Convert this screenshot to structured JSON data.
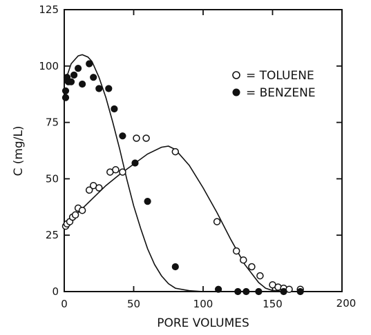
{
  "chart_data": {
    "type": "scatter",
    "xlabel": "PORE VOLUMES",
    "ylabel": "C (mg/L)",
    "xlim": [
      0,
      200
    ],
    "ylim": [
      0,
      125
    ],
    "x_ticks": [
      "0",
      "50",
      "100",
      "150",
      "200"
    ],
    "y_ticks": [
      "0",
      "25",
      "50",
      "75",
      "100",
      "125"
    ],
    "legend_position": "upper-right",
    "series": [
      {
        "name": "TOLUENE",
        "marker": "open-circle",
        "legend_label": "= TOLUENE",
        "points": [
          [
            1,
            29
          ],
          [
            2,
            30
          ],
          [
            4,
            31
          ],
          [
            6,
            33
          ],
          [
            8,
            34
          ],
          [
            10,
            37
          ],
          [
            13,
            36
          ],
          [
            18,
            45
          ],
          [
            21,
            47
          ],
          [
            25,
            46
          ],
          [
            33,
            53
          ],
          [
            37,
            54
          ],
          [
            42,
            53
          ],
          [
            52,
            68
          ],
          [
            59,
            68
          ],
          [
            80,
            62
          ],
          [
            110,
            31
          ],
          [
            124,
            18
          ],
          [
            129,
            14
          ],
          [
            135,
            11
          ],
          [
            141,
            7
          ],
          [
            150,
            3
          ],
          [
            154,
            2
          ],
          [
            158,
            1.5
          ],
          [
            162,
            1
          ],
          [
            170,
            1
          ]
        ]
      },
      {
        "name": "BENZENE",
        "marker": "filled-circle",
        "legend_label": "= BENZENE",
        "points": [
          [
            1,
            86
          ],
          [
            1,
            89
          ],
          [
            2,
            95
          ],
          [
            3,
            93
          ],
          [
            5,
            93
          ],
          [
            7,
            96
          ],
          [
            10,
            99
          ],
          [
            13,
            92
          ],
          [
            18,
            101
          ],
          [
            21,
            95
          ],
          [
            25,
            90
          ],
          [
            32,
            90
          ],
          [
            36,
            81
          ],
          [
            42,
            69
          ],
          [
            51,
            57
          ],
          [
            60,
            40
          ],
          [
            80,
            11
          ],
          [
            111,
            1
          ],
          [
            125,
            0
          ],
          [
            131,
            0
          ],
          [
            140,
            0
          ],
          [
            158,
            0
          ],
          [
            170,
            0
          ]
        ]
      }
    ],
    "fit_curves": [
      {
        "for": "TOLUENE",
        "points": [
          [
            0,
            29
          ],
          [
            10,
            35
          ],
          [
            20,
            41
          ],
          [
            30,
            47
          ],
          [
            40,
            52
          ],
          [
            50,
            56.5
          ],
          [
            60,
            61
          ],
          [
            70,
            64
          ],
          [
            75,
            64.5
          ],
          [
            80,
            63
          ],
          [
            90,
            56
          ],
          [
            100,
            46
          ],
          [
            110,
            35
          ],
          [
            120,
            23
          ],
          [
            130,
            12
          ],
          [
            140,
            4
          ],
          [
            145,
            1.5
          ],
          [
            150,
            0.5
          ],
          [
            160,
            0
          ],
          [
            175,
            0
          ]
        ]
      },
      {
        "for": "BENZENE",
        "points": [
          [
            0,
            92
          ],
          [
            5,
            101
          ],
          [
            10,
            104.5
          ],
          [
            13,
            105
          ],
          [
            17,
            104
          ],
          [
            20,
            102
          ],
          [
            25,
            95
          ],
          [
            30,
            86
          ],
          [
            35,
            75
          ],
          [
            40,
            63
          ],
          [
            45,
            50
          ],
          [
            50,
            38
          ],
          [
            55,
            28
          ],
          [
            60,
            19
          ],
          [
            65,
            12
          ],
          [
            70,
            7
          ],
          [
            75,
            3.5
          ],
          [
            80,
            1.5
          ],
          [
            90,
            0.4
          ],
          [
            100,
            0
          ],
          [
            120,
            0
          ]
        ]
      }
    ]
  }
}
